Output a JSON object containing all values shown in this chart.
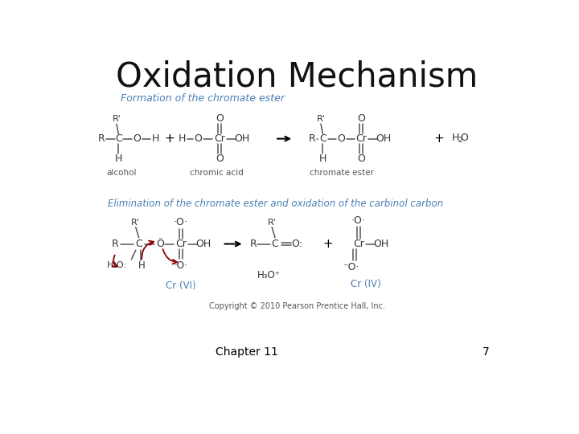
{
  "title": "Oxidation Mechanism",
  "title_fontsize": 28,
  "bg_color": "#ffffff",
  "section1_label": "Formation of the chromate ester",
  "section1_color": "#4a7fb5",
  "section2_label": "Elimination of the chromate ester and oxidation of the carbinol carbon",
  "section2_color": "#4a7fb5",
  "footer": "Copyright © 2010 Pearson Prentice Hall, Inc.",
  "chapter_label": "Chapter 11",
  "page_num": "7",
  "bond_color": "#555555",
  "text_color": "#333333",
  "arrow_color": "#8b0000"
}
